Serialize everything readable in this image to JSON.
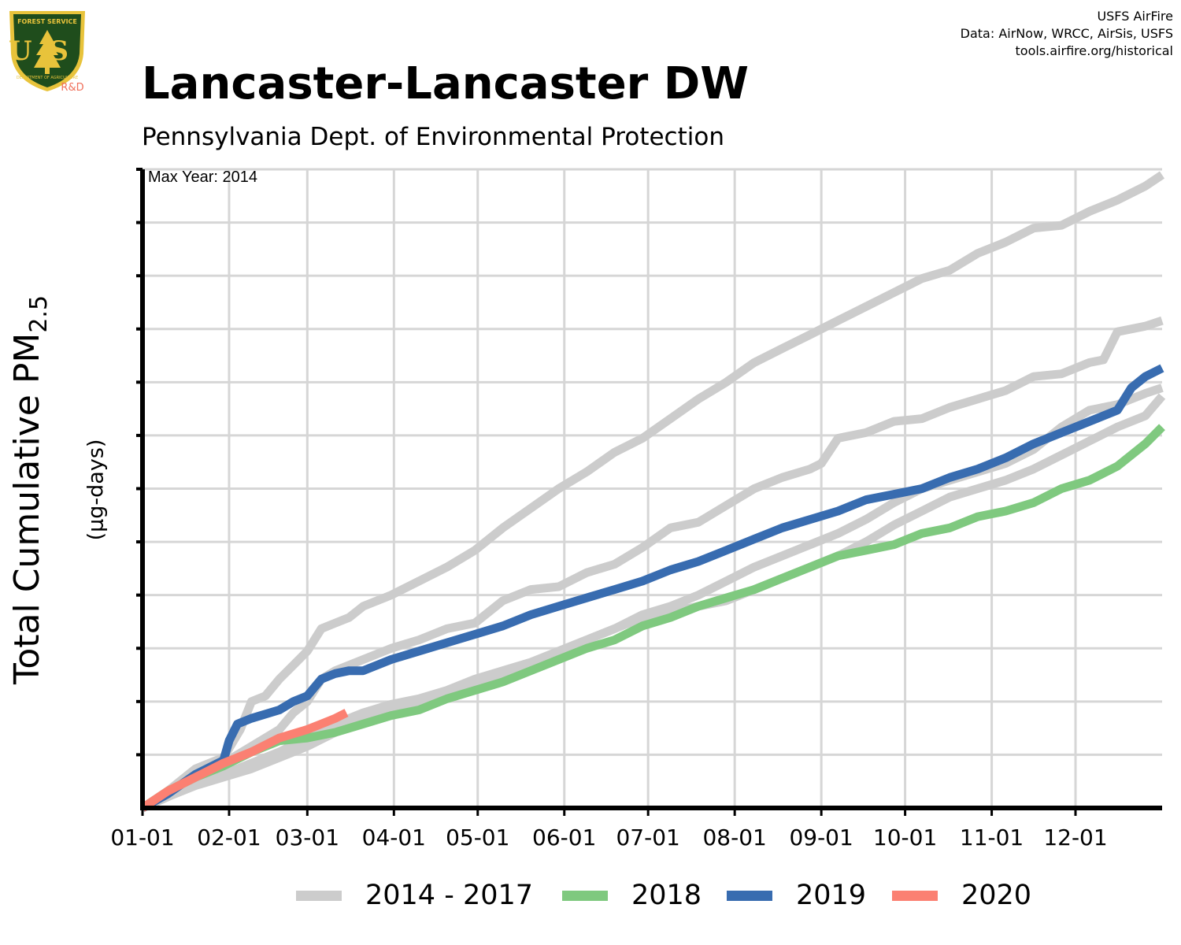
{
  "header": {
    "title": "Lancaster-Lancaster DW",
    "subtitle": "Pennsylvania Dept. of Environmental Protection",
    "credits": [
      "USFS AirFire",
      "Data: AirNow, WRCC, AirSis, USFS",
      "tools.airfire.org/historical"
    ],
    "logo_text": {
      "top": "FOREST SERVICE",
      "letters": "US",
      "bottom": "DEPARTMENT OF AGRICULTURE",
      "tag": "R&D"
    }
  },
  "colors": {
    "history": "#cccccc",
    "y2018": "#7fc97f",
    "y2019": "#386cb0",
    "y2020": "#fb8072",
    "grid": "#d6d6d6",
    "logo_shield": "#1f4d1c",
    "logo_gold": "#e8c33b",
    "logo_tag": "#f0705b"
  },
  "chart_data": {
    "type": "line",
    "ylabel": "Total Cumulative PM",
    "ylabel_subscript": "2.5",
    "yunit": "(µg-days)",
    "annotation": "Max Year: 2014",
    "x_ticks": [
      "01-01",
      "02-01",
      "03-01",
      "04-01",
      "05-01",
      "06-01",
      "07-01",
      "08-01",
      "09-01",
      "10-01",
      "11-01",
      "12-01"
    ],
    "x_tick_days": [
      1,
      32,
      60,
      91,
      121,
      152,
      182,
      213,
      244,
      274,
      305,
      335
    ],
    "xlim": [
      1,
      366
    ],
    "ylim": [
      0,
      1140
    ],
    "y_tick_count": 12,
    "grid": true,
    "legend": {
      "placement": "bottom",
      "entries": [
        "2014 - 2017",
        "2018",
        "2019",
        "2020"
      ]
    },
    "series": [
      {
        "name": "2014 - 2017",
        "group": "history",
        "x": [
          1,
          10,
          20,
          30,
          36,
          40,
          45,
          50,
          55,
          60,
          65,
          70,
          75,
          80,
          90,
          100,
          110,
          120,
          130,
          140,
          150,
          160,
          170,
          180,
          190,
          200,
          210,
          220,
          230,
          240,
          250,
          260,
          270,
          280,
          290,
          300,
          310,
          320,
          330,
          340,
          350,
          360,
          366
        ],
        "values": [
          0,
          30,
          70,
          90,
          140,
          190,
          200,
          230,
          255,
          280,
          320,
          330,
          340,
          360,
          380,
          405,
          430,
          460,
          500,
          535,
          570,
          600,
          635,
          660,
          695,
          730,
          760,
          795,
          820,
          845,
          870,
          895,
          920,
          945,
          960,
          990,
          1010,
          1035,
          1040,
          1065,
          1085,
          1110,
          1130
        ]
      },
      {
        "name": "2014 - 2017",
        "group": "history",
        "x": [
          1,
          10,
          20,
          30,
          40,
          50,
          55,
          60,
          65,
          70,
          80,
          90,
          100,
          110,
          120,
          130,
          140,
          150,
          160,
          170,
          180,
          190,
          200,
          210,
          220,
          230,
          240,
          244,
          250,
          260,
          270,
          280,
          290,
          300,
          310,
          320,
          330,
          340,
          345,
          350,
          360,
          366
        ],
        "values": [
          0,
          25,
          55,
          80,
          110,
          140,
          170,
          190,
          230,
          245,
          265,
          285,
          300,
          320,
          330,
          370,
          390,
          395,
          420,
          435,
          465,
          500,
          510,
          540,
          570,
          590,
          605,
          615,
          660,
          670,
          690,
          695,
          715,
          730,
          745,
          770,
          775,
          795,
          800,
          850,
          860,
          870
        ]
      },
      {
        "name": "2014 - 2017",
        "group": "history",
        "x": [
          1,
          10,
          20,
          30,
          40,
          50,
          60,
          70,
          80,
          90,
          100,
          110,
          120,
          130,
          140,
          150,
          160,
          170,
          180,
          190,
          200,
          210,
          220,
          230,
          240,
          250,
          260,
          270,
          280,
          290,
          300,
          310,
          320,
          330,
          340,
          350,
          360,
          366
        ],
        "values": [
          0,
          20,
          45,
          60,
          80,
          100,
          125,
          150,
          170,
          185,
          195,
          210,
          230,
          245,
          260,
          280,
          300,
          320,
          340,
          350,
          360,
          370,
          390,
          410,
          430,
          450,
          475,
          505,
          530,
          555,
          570,
          585,
          605,
          630,
          655,
          680,
          700,
          735
        ]
      },
      {
        "name": "2014 - 2017",
        "group": "history",
        "x": [
          1,
          10,
          20,
          30,
          40,
          50,
          60,
          70,
          80,
          90,
          100,
          110,
          120,
          130,
          140,
          150,
          160,
          170,
          180,
          190,
          200,
          210,
          220,
          230,
          240,
          250,
          260,
          270,
          280,
          290,
          300,
          310,
          320,
          330,
          340,
          350,
          360,
          366
        ],
        "values": [
          0,
          20,
          40,
          55,
          70,
          90,
          110,
          135,
          155,
          170,
          185,
          200,
          220,
          240,
          255,
          280,
          300,
          320,
          345,
          360,
          380,
          405,
          430,
          450,
          470,
          490,
          515,
          545,
          570,
          585,
          600,
          615,
          640,
          680,
          710,
          720,
          740,
          750
        ]
      },
      {
        "name": "2018",
        "group": "y2018",
        "x": [
          1,
          10,
          20,
          30,
          40,
          50,
          60,
          70,
          80,
          90,
          100,
          110,
          120,
          130,
          140,
          150,
          160,
          170,
          180,
          190,
          200,
          210,
          220,
          230,
          240,
          250,
          260,
          270,
          280,
          290,
          300,
          310,
          320,
          330,
          340,
          350,
          360,
          366
        ],
        "values": [
          0,
          30,
          55,
          75,
          100,
          120,
          125,
          135,
          150,
          165,
          175,
          195,
          210,
          225,
          245,
          265,
          285,
          300,
          325,
          340,
          360,
          375,
          390,
          410,
          430,
          450,
          460,
          470,
          490,
          500,
          520,
          530,
          545,
          570,
          585,
          610,
          650,
          680
        ]
      },
      {
        "name": "2019",
        "group": "y2019",
        "x": [
          1,
          10,
          20,
          30,
          32,
          35,
          40,
          50,
          55,
          60,
          65,
          70,
          75,
          80,
          90,
          100,
          110,
          120,
          130,
          140,
          150,
          160,
          170,
          180,
          190,
          200,
          210,
          220,
          230,
          240,
          250,
          260,
          270,
          280,
          290,
          300,
          310,
          320,
          330,
          340,
          350,
          355,
          360,
          366
        ],
        "values": [
          0,
          25,
          60,
          85,
          120,
          150,
          160,
          175,
          190,
          200,
          230,
          240,
          245,
          245,
          265,
          280,
          295,
          310,
          325,
          345,
          360,
          375,
          390,
          405,
          425,
          440,
          460,
          480,
          500,
          515,
          530,
          550,
          560,
          570,
          590,
          605,
          625,
          650,
          670,
          690,
          710,
          750,
          770,
          785
        ]
      },
      {
        "name": "2020",
        "group": "y2020",
        "x": [
          1,
          10,
          20,
          30,
          40,
          50,
          60,
          65,
          70,
          74
        ],
        "values": [
          0,
          30,
          55,
          80,
          100,
          125,
          140,
          150,
          160,
          170
        ]
      }
    ]
  }
}
